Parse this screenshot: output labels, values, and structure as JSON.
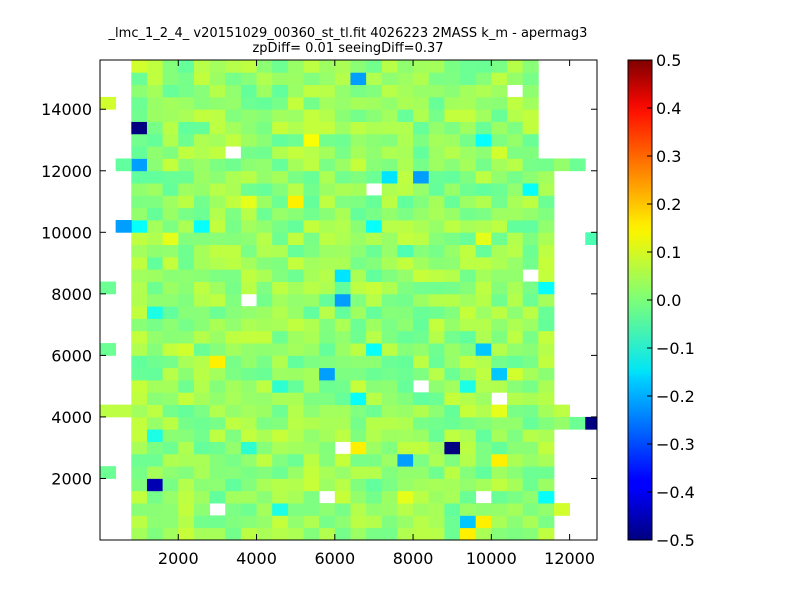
{
  "chart_data": {
    "type": "heatmap",
    "title": "_lmc_1_2_4_ v20151029_00360_st_tl.fit 4026223 2MASS k_m - apermag3",
    "subtitle": "zpDiff= 0.01 seeingDiff=0.37",
    "xlabel": "",
    "ylabel": "",
    "xlim": [
      0,
      12700
    ],
    "ylim": [
      0,
      15600
    ],
    "xticks": [
      2000,
      4000,
      6000,
      8000,
      10000,
      12000
    ],
    "yticks": [
      2000,
      4000,
      6000,
      8000,
      10000,
      12000,
      14000
    ],
    "colorbar": {
      "colormap": "jet",
      "range": [
        -0.5,
        0.5
      ],
      "ticks": [
        -0.5,
        -0.4,
        -0.3,
        -0.2,
        -0.1,
        0.0,
        0.1,
        0.2,
        0.3,
        0.4,
        0.5
      ],
      "tick_labels": [
        "−0.5",
        "−0.4",
        "−0.3",
        "−0.2",
        "−0.1",
        "0.0",
        "0.1",
        "0.2",
        "0.3",
        "0.4",
        "0.5"
      ]
    },
    "bin_size": [
      400,
      400
    ],
    "background": 0.02,
    "variation": 0.05,
    "x_coverage": [
      {
        "y": [
          0,
          4000
        ],
        "x": [
          800,
          11600
        ]
      },
      {
        "y": [
          4000,
          12400
        ],
        "x": [
          800,
          11600
        ]
      },
      {
        "y": [
          12400,
          15600
        ],
        "x": [
          800,
          11200
        ]
      }
    ],
    "edge_cells": [
      {
        "x": 0,
        "y": 14000,
        "v": 0.08
      },
      {
        "x": 0,
        "y": 8000,
        "v": -0.02
      },
      {
        "x": 0,
        "y": 6000,
        "v": -0.02
      },
      {
        "x": 0,
        "y": 4000,
        "v": 0.06
      },
      {
        "x": 400,
        "y": 4000,
        "v": 0.06
      },
      {
        "x": 0,
        "y": 2000,
        "v": -0.02
      },
      {
        "x": 400,
        "y": 12000,
        "v": -0.03
      },
      {
        "x": 400,
        "y": 10000,
        "v": -0.22
      },
      {
        "x": 11600,
        "y": 12000,
        "v": 0.02
      },
      {
        "x": 11600,
        "y": 4000,
        "v": 0.06
      },
      {
        "x": 11600,
        "y": 3600,
        "v": 0.02
      },
      {
        "x": 12000,
        "y": 12000,
        "v": -0.02
      },
      {
        "x": 12000,
        "y": 3600,
        "v": -0.02
      },
      {
        "x": 12400,
        "y": 3600,
        "v": -0.5
      },
      {
        "x": 12400,
        "y": 9600,
        "v": -0.05
      }
    ],
    "highlight_cells": [
      {
        "x": 800,
        "y": 15200,
        "v": 0.08
      },
      {
        "x": 6400,
        "y": 14800,
        "v": -0.22
      },
      {
        "x": 800,
        "y": 13200,
        "v": -0.5
      },
      {
        "x": 800,
        "y": 12000,
        "v": -0.22
      },
      {
        "x": 5200,
        "y": 12800,
        "v": 0.12
      },
      {
        "x": 10400,
        "y": 14400,
        "v": null
      },
      {
        "x": 3200,
        "y": 12400,
        "v": null
      },
      {
        "x": 9600,
        "y": 12800,
        "v": -0.12
      },
      {
        "x": 10000,
        "y": 12400,
        "v": 0.08
      },
      {
        "x": 7200,
        "y": 11600,
        "v": -0.15
      },
      {
        "x": 8000,
        "y": 11600,
        "v": -0.22
      },
      {
        "x": 6800,
        "y": 11200,
        "v": null
      },
      {
        "x": 10800,
        "y": 11200,
        "v": -0.12
      },
      {
        "x": 4800,
        "y": 10800,
        "v": 0.14
      },
      {
        "x": 3600,
        "y": 10800,
        "v": 0.1
      },
      {
        "x": 6000,
        "y": 10800,
        "v": 0.0
      },
      {
        "x": 2400,
        "y": 10000,
        "v": -0.12
      },
      {
        "x": 6800,
        "y": 10000,
        "v": -0.12
      },
      {
        "x": 800,
        "y": 10000,
        "v": -0.12
      },
      {
        "x": 1600,
        "y": 9600,
        "v": 0.1
      },
      {
        "x": 9600,
        "y": 9600,
        "v": 0.1
      },
      {
        "x": 7600,
        "y": 9200,
        "v": -0.05
      },
      {
        "x": 11200,
        "y": 9200,
        "v": 0.06
      },
      {
        "x": 6000,
        "y": 8400,
        "v": -0.15
      },
      {
        "x": 10800,
        "y": 8400,
        "v": null
      },
      {
        "x": 11200,
        "y": 8000,
        "v": -0.12
      },
      {
        "x": 3600,
        "y": 7600,
        "v": null
      },
      {
        "x": 6000,
        "y": 7600,
        "v": -0.22
      },
      {
        "x": 1200,
        "y": 7200,
        "v": -0.1
      },
      {
        "x": 2000,
        "y": 6000,
        "v": 0.08
      },
      {
        "x": 6800,
        "y": 6000,
        "v": -0.12
      },
      {
        "x": 9600,
        "y": 6000,
        "v": -0.18
      },
      {
        "x": 2800,
        "y": 5600,
        "v": 0.14
      },
      {
        "x": 5600,
        "y": 5200,
        "v": -0.22
      },
      {
        "x": 10000,
        "y": 5200,
        "v": -0.18
      },
      {
        "x": 10400,
        "y": 5200,
        "v": 0.08
      },
      {
        "x": 4400,
        "y": 4800,
        "v": -0.08
      },
      {
        "x": 8000,
        "y": 4800,
        "v": null
      },
      {
        "x": 9200,
        "y": 4800,
        "v": -0.1
      },
      {
        "x": 6400,
        "y": 4400,
        "v": -0.12
      },
      {
        "x": 10000,
        "y": 4400,
        "v": null
      },
      {
        "x": 10000,
        "y": 4000,
        "v": 0.1
      },
      {
        "x": 1200,
        "y": 3200,
        "v": -0.1
      },
      {
        "x": 6000,
        "y": 2800,
        "v": null
      },
      {
        "x": 6400,
        "y": 2800,
        "v": 0.14
      },
      {
        "x": 8800,
        "y": 2800,
        "v": -0.5
      },
      {
        "x": 3600,
        "y": 2800,
        "v": -0.08
      },
      {
        "x": 7600,
        "y": 2400,
        "v": -0.22
      },
      {
        "x": 10000,
        "y": 2400,
        "v": 0.14
      },
      {
        "x": 1200,
        "y": 1600,
        "v": -0.45
      },
      {
        "x": 5600,
        "y": 1200,
        "v": null
      },
      {
        "x": 9600,
        "y": 1200,
        "v": null
      },
      {
        "x": 7600,
        "y": 1200,
        "v": 0.1
      },
      {
        "x": 11200,
        "y": 1200,
        "v": -0.12
      },
      {
        "x": 2800,
        "y": 800,
        "v": null
      },
      {
        "x": 4400,
        "y": 800,
        "v": -0.1
      },
      {
        "x": 11600,
        "y": 800,
        "v": 0.08
      },
      {
        "x": 9200,
        "y": 400,
        "v": -0.18
      },
      {
        "x": 9600,
        "y": 400,
        "v": 0.14
      },
      {
        "x": 9200,
        "y": 0,
        "v": 0.14
      }
    ]
  }
}
